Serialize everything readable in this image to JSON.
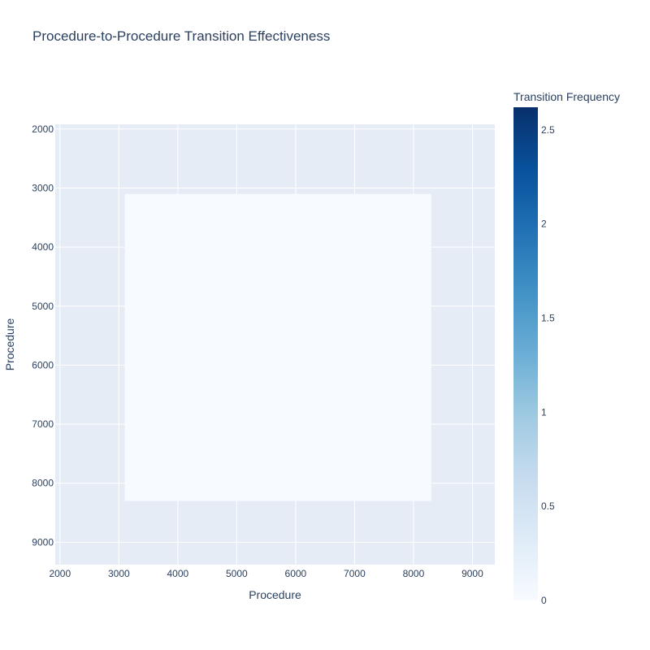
{
  "chart_data": {
    "type": "heatmap",
    "title": "Procedure-to-Procedure Transition Effectiveness",
    "xlabel": "Procedure",
    "ylabel": "Procedure",
    "x_ticks": [
      "2000",
      "3000",
      "4000",
      "5000",
      "6000",
      "7000",
      "8000",
      "9000"
    ],
    "y_ticks": [
      "2000",
      "3000",
      "4000",
      "5000",
      "6000",
      "7000",
      "8000",
      "9000"
    ],
    "xlim": [
      1920,
      9380
    ],
    "ylim": [
      1920,
      9380
    ],
    "y_reversed": true,
    "grid": true,
    "cells": [
      {
        "x": [
          3100,
          8300
        ],
        "y": [
          3100,
          8300
        ],
        "value": 0
      }
    ],
    "colorbar": {
      "title": "Transition Frequency",
      "range": [
        0,
        2.62
      ],
      "ticks": [
        "0",
        "0.5",
        "1",
        "1.5",
        "2",
        "2.5"
      ],
      "colorscale": [
        "#f7fbff",
        "#deebf7",
        "#c6dbef",
        "#9ecae1",
        "#6baed6",
        "#4292c6",
        "#2171b5",
        "#08519c",
        "#08306b"
      ]
    },
    "plot_bg": "#e5ecf6",
    "grid_color": "#ffffff"
  }
}
